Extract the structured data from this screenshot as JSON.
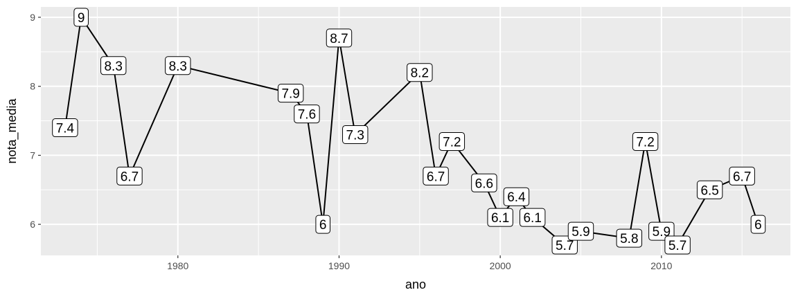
{
  "chart_data": {
    "type": "line",
    "xlabel": "ano",
    "ylabel": "nota_media",
    "xlim": [
      1971.5,
      2018.0
    ],
    "ylim": [
      5.55,
      9.15
    ],
    "x_ticks": [
      1980,
      1990,
      2000,
      2010
    ],
    "y_ticks": [
      6,
      7,
      8,
      9
    ],
    "grid": true,
    "legend": "none",
    "colors": {
      "panel": "#ebebeb",
      "grid": "#ffffff",
      "line": "#000000",
      "label_fill": "#ffffff"
    },
    "series": [
      {
        "x": [
          1973,
          1974,
          1976,
          1977,
          1980,
          1987,
          1988,
          1989,
          1990,
          1991,
          1995,
          1996,
          1997,
          1999,
          2000,
          2001,
          2002,
          2004,
          2005,
          2008,
          2009,
          2010,
          2011,
          2013,
          2015,
          2016
        ],
        "values": [
          7.4,
          9.0,
          8.3,
          6.7,
          8.3,
          7.9,
          7.6,
          6.0,
          8.7,
          7.3,
          8.2,
          6.7,
          7.2,
          6.6,
          6.1,
          6.4,
          6.1,
          5.7,
          5.9,
          5.8,
          7.2,
          5.9,
          5.7,
          6.5,
          6.7,
          6.0
        ],
        "labels": [
          "7.4",
          "9",
          "8.3",
          "6.7",
          "8.3",
          "7.9",
          "7.6",
          "6",
          "8.7",
          "7.3",
          "8.2",
          "6.7",
          "7.2",
          "6.6",
          "6.1",
          "6.4",
          "6.1",
          "5.7",
          "5.9",
          "5.8",
          "7.2",
          "5.9",
          "5.7",
          "6.5",
          "6.7",
          "6"
        ]
      }
    ]
  }
}
